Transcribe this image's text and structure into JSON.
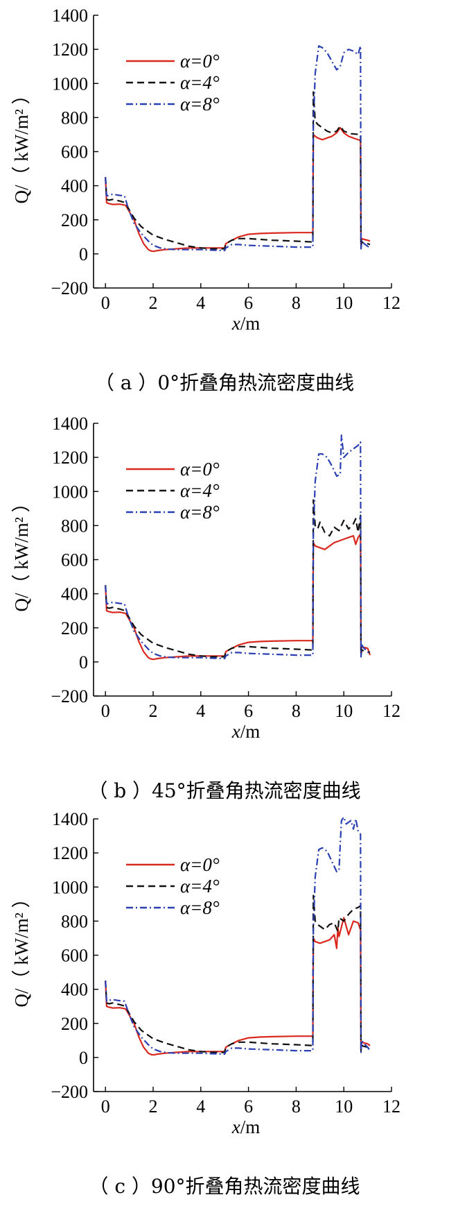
{
  "chart_data": [
    {
      "type": "line",
      "caption": "（ a ）0°折叠角热流密度曲线",
      "xlabel_var": "x",
      "xlabel_unit": "/m",
      "ylabel": "Q/（ kW/m² ）",
      "xlim": [
        -0.5,
        12
      ],
      "ylim": [
        -200,
        1400
      ],
      "xticks": [
        "0",
        "2",
        "4",
        "6",
        "8",
        "10",
        "12"
      ],
      "yticks": [
        "−200",
        "0",
        "200",
        "400",
        "600",
        "800",
        "1000",
        "1200",
        "1400"
      ],
      "legend_position": "top-left",
      "series": [
        {
          "name": "α=0°",
          "color": "#d9281e",
          "dash": "solid",
          "x": [
            0,
            0.05,
            0.15,
            0.3,
            0.6,
            0.85,
            0.95,
            1.2,
            1.4,
            1.6,
            1.8,
            1.9,
            2.0,
            2.2,
            2.5,
            3.0,
            3.5,
            4.0,
            4.5,
            5.0,
            5.05,
            5.3,
            5.6,
            6.0,
            6.5,
            7.0,
            8.0,
            8.7,
            8.72,
            8.8,
            8.9,
            9.1,
            9.3,
            9.5,
            9.7,
            9.85,
            10.0,
            10.2,
            10.5,
            10.7,
            10.72,
            10.75,
            10.85,
            11.0,
            11.1
          ],
          "y": [
            450,
            300,
            295,
            290,
            292,
            285,
            260,
            200,
            120,
            60,
            25,
            18,
            15,
            20,
            25,
            30,
            35,
            35,
            35,
            35,
            60,
            80,
            100,
            115,
            120,
            122,
            125,
            125,
            700,
            690,
            680,
            670,
            680,
            690,
            710,
            740,
            710,
            690,
            675,
            665,
            50,
            90,
            85,
            80,
            75
          ]
        },
        {
          "name": "α=4°",
          "color": "#111111",
          "dash": "10,6",
          "x": [
            0,
            0.05,
            0.15,
            0.3,
            0.6,
            0.85,
            0.95,
            1.2,
            1.5,
            2.0,
            2.5,
            3.0,
            3.5,
            4.0,
            4.5,
            5.0,
            5.05,
            5.3,
            5.6,
            6.0,
            7.0,
            8.0,
            8.7,
            8.72,
            8.8,
            8.9,
            9.1,
            9.3,
            9.5,
            9.7,
            9.85,
            10.0,
            10.3,
            10.7,
            10.72,
            10.75,
            10.85,
            11.0,
            11.1
          ],
          "y": [
            450,
            320,
            315,
            320,
            310,
            300,
            270,
            210,
            160,
            110,
            85,
            65,
            45,
            35,
            30,
            30,
            60,
            80,
            90,
            90,
            80,
            75,
            70,
            950,
            780,
            760,
            740,
            720,
            710,
            720,
            750,
            720,
            705,
            700,
            40,
            70,
            65,
            60,
            55
          ]
        },
        {
          "name": "α=8°",
          "color": "#2a3fb0",
          "dash": "10,4,2,4",
          "x": [
            0,
            0.05,
            0.15,
            0.3,
            0.5,
            0.8,
            0.95,
            1.2,
            1.5,
            1.8,
            2.0,
            2.3,
            2.6,
            3.0,
            3.5,
            4.0,
            4.5,
            5.0,
            5.05,
            5.3,
            5.6,
            6.0,
            7.0,
            8.0,
            8.7,
            8.72,
            8.8,
            8.95,
            9.1,
            9.3,
            9.5,
            9.7,
            9.85,
            10.0,
            10.2,
            10.4,
            10.6,
            10.7,
            10.72,
            10.75,
            10.85,
            11.0,
            11.1
          ],
          "y": [
            450,
            340,
            345,
            350,
            345,
            340,
            270,
            180,
            120,
            75,
            50,
            35,
            28,
            25,
            25,
            25,
            22,
            20,
            35,
            55,
            55,
            50,
            45,
            40,
            40,
            750,
            1060,
            1220,
            1210,
            1180,
            1130,
            1080,
            1100,
            1180,
            1200,
            1190,
            1170,
            1220,
            30,
            80,
            60,
            45,
            35
          ]
        }
      ]
    },
    {
      "type": "line",
      "caption": "（ b ）45°折叠角热流密度曲线",
      "xlabel_var": "x",
      "xlabel_unit": "/m",
      "ylabel": "Q/（ kW/m² ）",
      "xlim": [
        -0.5,
        12
      ],
      "ylim": [
        -200,
        1400
      ],
      "xticks": [
        "0",
        "2",
        "4",
        "6",
        "8",
        "10",
        "12"
      ],
      "yticks": [
        "−200",
        "0",
        "200",
        "400",
        "600",
        "800",
        "1000",
        "1200",
        "1400"
      ],
      "legend_position": "top-left",
      "series": [
        {
          "name": "α=0°",
          "color": "#d9281e",
          "dash": "solid",
          "x": [
            0,
            0.05,
            0.15,
            0.3,
            0.6,
            0.85,
            0.95,
            1.2,
            1.4,
            1.6,
            1.8,
            1.9,
            2.0,
            2.2,
            2.5,
            3.0,
            3.5,
            4.0,
            4.5,
            5.0,
            5.05,
            5.3,
            5.6,
            6.0,
            6.5,
            7.0,
            8.0,
            8.7,
            8.72,
            8.8,
            9.0,
            9.2,
            9.4,
            9.6,
            9.8,
            10.0,
            10.2,
            10.4,
            10.5,
            10.6,
            10.7,
            10.72,
            10.75,
            10.85,
            11.0,
            11.1
          ],
          "y": [
            450,
            300,
            295,
            290,
            292,
            285,
            260,
            200,
            120,
            60,
            25,
            18,
            15,
            20,
            25,
            30,
            35,
            35,
            35,
            35,
            60,
            80,
            100,
            115,
            120,
            122,
            125,
            125,
            700,
            680,
            670,
            660,
            680,
            700,
            710,
            720,
            730,
            740,
            690,
            730,
            750,
            50,
            90,
            85,
            80,
            40
          ]
        },
        {
          "name": "α=4°",
          "color": "#111111",
          "dash": "10,6",
          "x": [
            0,
            0.05,
            0.15,
            0.3,
            0.6,
            0.85,
            0.95,
            1.2,
            1.5,
            2.0,
            2.5,
            3.0,
            3.5,
            4.0,
            4.5,
            5.0,
            5.05,
            5.3,
            5.6,
            6.0,
            7.0,
            8.0,
            8.7,
            8.72,
            8.8,
            8.9,
            9.0,
            9.2,
            9.4,
            9.6,
            9.8,
            10.0,
            10.2,
            10.4,
            10.5,
            10.6,
            10.7,
            10.72,
            10.75,
            10.85,
            11.0,
            11.1
          ],
          "y": [
            450,
            320,
            315,
            320,
            310,
            300,
            270,
            210,
            160,
            110,
            85,
            65,
            45,
            35,
            30,
            30,
            60,
            80,
            90,
            90,
            80,
            75,
            70,
            950,
            800,
            780,
            820,
            760,
            740,
            790,
            770,
            830,
            780,
            810,
            840,
            760,
            860,
            40,
            70,
            65,
            60,
            55
          ]
        },
        {
          "name": "α=8°",
          "color": "#2a3fb0",
          "dash": "10,4,2,4",
          "x": [
            0,
            0.05,
            0.15,
            0.3,
            0.5,
            0.8,
            0.95,
            1.2,
            1.5,
            1.8,
            2.0,
            2.3,
            2.6,
            3.0,
            3.5,
            4.0,
            4.5,
            5.0,
            5.05,
            5.3,
            5.6,
            6.0,
            7.0,
            8.0,
            8.7,
            8.72,
            8.8,
            8.95,
            9.1,
            9.3,
            9.5,
            9.7,
            9.85,
            9.9,
            10.0,
            10.2,
            10.4,
            10.6,
            10.7,
            10.72,
            10.75,
            10.85,
            11.0,
            11.1
          ],
          "y": [
            450,
            340,
            345,
            350,
            345,
            340,
            270,
            180,
            120,
            75,
            50,
            35,
            28,
            25,
            25,
            25,
            22,
            20,
            35,
            55,
            55,
            50,
            45,
            40,
            40,
            750,
            1060,
            1220,
            1220,
            1200,
            1150,
            1090,
            1100,
            1330,
            1200,
            1230,
            1250,
            1270,
            1290,
            30,
            100,
            80,
            60,
            40
          ]
        }
      ]
    },
    {
      "type": "line",
      "caption": "（ c ）90°折叠角热流密度曲线",
      "xlabel_var": "x",
      "xlabel_unit": "/m",
      "ylabel": "Q/（ kW/m² ）",
      "xlim": [
        -0.5,
        12
      ],
      "ylim": [
        -200,
        1400
      ],
      "xticks": [
        "0",
        "2",
        "4",
        "6",
        "8",
        "10",
        "12"
      ],
      "yticks": [
        "−200",
        "0",
        "200",
        "400",
        "600",
        "800",
        "1000",
        "1200",
        "1400"
      ],
      "legend_position": "top-left",
      "series": [
        {
          "name": "α=0°",
          "color": "#d9281e",
          "dash": "solid",
          "x": [
            0,
            0.05,
            0.15,
            0.3,
            0.6,
            0.85,
            0.95,
            1.2,
            1.4,
            1.6,
            1.8,
            1.9,
            2.0,
            2.2,
            2.5,
            3.0,
            3.5,
            4.0,
            4.5,
            5.0,
            5.05,
            5.3,
            5.6,
            6.0,
            6.5,
            7.0,
            8.0,
            8.7,
            8.72,
            8.8,
            9.0,
            9.2,
            9.4,
            9.6,
            9.7,
            9.75,
            9.8,
            10.0,
            10.2,
            10.4,
            10.6,
            10.7,
            10.72,
            10.75,
            10.85,
            11.0,
            11.1
          ],
          "y": [
            450,
            300,
            295,
            290,
            292,
            285,
            260,
            200,
            120,
            60,
            25,
            18,
            15,
            20,
            25,
            30,
            35,
            35,
            35,
            35,
            60,
            80,
            100,
            115,
            120,
            122,
            125,
            125,
            700,
            680,
            670,
            680,
            690,
            720,
            640,
            760,
            710,
            820,
            720,
            800,
            790,
            750,
            50,
            90,
            85,
            80,
            70
          ]
        },
        {
          "name": "α=4°",
          "color": "#111111",
          "dash": "10,6",
          "x": [
            0,
            0.05,
            0.15,
            0.3,
            0.6,
            0.85,
            0.95,
            1.2,
            1.5,
            2.0,
            2.5,
            3.0,
            3.5,
            4.0,
            4.5,
            5.0,
            5.05,
            5.3,
            5.6,
            6.0,
            7.0,
            8.0,
            8.7,
            8.72,
            8.8,
            8.9,
            9.0,
            9.2,
            9.4,
            9.6,
            9.75,
            9.8,
            10.0,
            10.2,
            10.4,
            10.6,
            10.7,
            10.72,
            10.75,
            10.85,
            11.0,
            11.1
          ],
          "y": [
            450,
            320,
            315,
            320,
            310,
            300,
            270,
            210,
            160,
            110,
            85,
            65,
            45,
            35,
            30,
            30,
            60,
            80,
            90,
            90,
            80,
            75,
            70,
            950,
            800,
            780,
            770,
            750,
            780,
            790,
            740,
            820,
            800,
            840,
            870,
            880,
            890,
            40,
            70,
            65,
            60,
            55
          ]
        },
        {
          "name": "α=8°",
          "color": "#2a3fb0",
          "dash": "10,4,2,4",
          "x": [
            0,
            0.05,
            0.15,
            0.3,
            0.5,
            0.8,
            0.95,
            1.2,
            1.5,
            1.8,
            2.0,
            2.3,
            2.6,
            3.0,
            3.5,
            4.0,
            4.5,
            5.0,
            5.05,
            5.3,
            5.6,
            6.0,
            7.0,
            8.0,
            8.7,
            8.72,
            8.8,
            8.95,
            9.1,
            9.3,
            9.5,
            9.7,
            9.8,
            9.85,
            9.9,
            10.0,
            10.1,
            10.3,
            10.4,
            10.5,
            10.6,
            10.7,
            10.72,
            10.75,
            10.85,
            11.0,
            11.1
          ],
          "y": [
            450,
            330,
            335,
            340,
            335,
            330,
            270,
            180,
            120,
            75,
            50,
            35,
            28,
            25,
            25,
            25,
            22,
            20,
            35,
            55,
            55,
            50,
            45,
            40,
            40,
            750,
            1060,
            1220,
            1230,
            1210,
            1150,
            1090,
            1100,
            1250,
            1390,
            1410,
            1370,
            1390,
            1340,
            1400,
            1330,
            1310,
            30,
            100,
            80,
            60,
            40
          ]
        }
      ]
    }
  ]
}
